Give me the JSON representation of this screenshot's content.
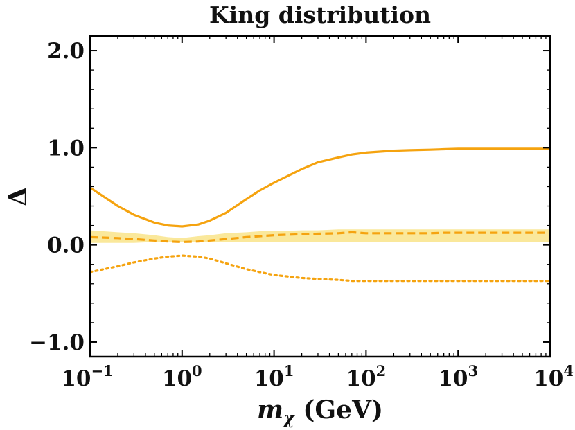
{
  "chart_data": {
    "type": "line",
    "title": "King distribution",
    "xlabel": {
      "main": "m",
      "subscript": "χ",
      "unit": "(GeV)"
    },
    "ylabel": "Δ",
    "xscale": "log",
    "xlim": [
      0.1,
      10000
    ],
    "ylim": [
      -1.15,
      2.15
    ],
    "x_ticks": [
      {
        "base": "10",
        "exp": "−1",
        "value": 0.1
      },
      {
        "base": "10",
        "exp": "0",
        "value": 1
      },
      {
        "base": "10",
        "exp": "1",
        "value": 10
      },
      {
        "base": "10",
        "exp": "2",
        "value": 100
      },
      {
        "base": "10",
        "exp": "3",
        "value": 1000
      },
      {
        "base": "10",
        "exp": "4",
        "value": 10000
      }
    ],
    "y_ticks": [
      {
        "label": "−1.0",
        "value": -1.0
      },
      {
        "label": "0.0",
        "value": 0.0
      },
      {
        "label": "1.0",
        "value": 1.0
      },
      {
        "label": "2.0",
        "value": 2.0
      }
    ],
    "x": [
      0.1,
      0.2,
      0.3,
      0.5,
      0.7,
      1,
      1.5,
      2,
      3,
      5,
      7,
      10,
      20,
      30,
      50,
      70,
      100,
      200,
      300,
      500,
      700,
      1000,
      2000,
      3000,
      5000,
      7000,
      10000
    ],
    "band": {
      "name": "band",
      "color": "#f9e48a",
      "lower": [
        0.02,
        0.02,
        0.02,
        0.03,
        0.03,
        0.03,
        0.03,
        0.03,
        0.03,
        0.03,
        0.03,
        0.03,
        0.03,
        0.03,
        0.03,
        0.03,
        0.03,
        0.03,
        0.03,
        0.03,
        0.03,
        0.03,
        0.03,
        0.03,
        0.03,
        0.03,
        0.03
      ],
      "upper": [
        0.15,
        0.13,
        0.12,
        0.1,
        0.08,
        0.07,
        0.09,
        0.1,
        0.12,
        0.13,
        0.14,
        0.14,
        0.15,
        0.15,
        0.16,
        0.16,
        0.16,
        0.16,
        0.16,
        0.16,
        0.16,
        0.16,
        0.16,
        0.16,
        0.16,
        0.16,
        0.16
      ]
    },
    "series": [
      {
        "name": "solid",
        "style": "solid",
        "color": "#f5a30f",
        "values": [
          0.59,
          0.4,
          0.31,
          0.23,
          0.2,
          0.19,
          0.21,
          0.25,
          0.33,
          0.47,
          0.56,
          0.64,
          0.78,
          0.85,
          0.9,
          0.93,
          0.95,
          0.97,
          0.975,
          0.98,
          0.985,
          0.99,
          0.99,
          0.99,
          0.99,
          0.99,
          0.99
        ]
      },
      {
        "name": "dashed",
        "style": "dashed",
        "color": "#f5a30f",
        "values": [
          0.08,
          0.07,
          0.06,
          0.045,
          0.035,
          0.03,
          0.035,
          0.045,
          0.06,
          0.08,
          0.09,
          0.1,
          0.11,
          0.115,
          0.12,
          0.13,
          0.12,
          0.12,
          0.12,
          0.12,
          0.125,
          0.125,
          0.125,
          0.125,
          0.125,
          0.125,
          0.125
        ]
      },
      {
        "name": "dotted",
        "style": "dotted",
        "color": "#f5a30f",
        "values": [
          -0.28,
          -0.22,
          -0.18,
          -0.14,
          -0.12,
          -0.11,
          -0.12,
          -0.14,
          -0.19,
          -0.25,
          -0.28,
          -0.31,
          -0.34,
          -0.35,
          -0.36,
          -0.37,
          -0.37,
          -0.37,
          -0.37,
          -0.37,
          -0.37,
          -0.37,
          -0.37,
          -0.37,
          -0.37,
          -0.37,
          -0.37
        ]
      }
    ]
  }
}
